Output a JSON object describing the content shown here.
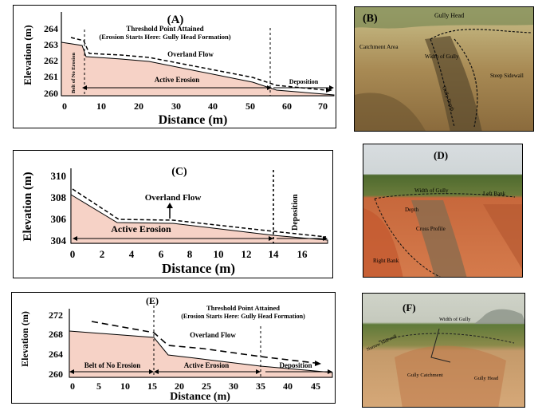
{
  "panels": {
    "A": {
      "label": "(A)",
      "ylabel": "Elevation (m)",
      "xlabel": "Distance (m)",
      "yticks": [
        "260",
        "261",
        "262",
        "263",
        "264"
      ],
      "xticks": [
        "0",
        "10",
        "20",
        "30",
        "40",
        "50",
        "60",
        "70"
      ],
      "annotation": "Threshold Point Attained",
      "annotation2": "(Erosion Starts Here: Gully Head Formation)",
      "flow": "Overland Flow",
      "zone1": "Belt of No Erosion",
      "zone2": "Active Erosion",
      "zone3": "Deposition"
    },
    "B": {
      "label": "(B)",
      "gully_head": "Gully Head",
      "catchment": "Catchment Area",
      "width": "Width of Gully",
      "sidewall": "Steep Sidewall",
      "depth": "Gully Depth"
    },
    "C": {
      "label": "(C)",
      "ylabel": "Elevation (m)",
      "xlabel": "Distance (m)",
      "yticks": [
        "304",
        "306",
        "308",
        "310"
      ],
      "xticks": [
        "0",
        "2",
        "4",
        "6",
        "8",
        "10",
        "12",
        "14",
        "16"
      ],
      "flow": "Overland Flow",
      "zone1": "Active Erosion",
      "zone2": "Deposition"
    },
    "D": {
      "label": "(D)",
      "width": "Width of Gully",
      "left_bank": "Left Bank",
      "depth": "Depth",
      "cross": "Cross Profile",
      "right_bank": "Right Bank"
    },
    "E": {
      "label": "(E)",
      "ylabel": "Elevation (m)",
      "xlabel": "Distance (m)",
      "yticks": [
        "260",
        "264",
        "268",
        "272"
      ],
      "xticks": [
        "0",
        "5",
        "10",
        "15",
        "20",
        "25",
        "30",
        "35",
        "40",
        "45"
      ],
      "annotation": "Threshold Point Attained",
      "annotation2": "(Erosion Starts Here: Gully Head Formation)",
      "flow": "Overland Flow",
      "zone1": "Belt of No Erosion",
      "zone2": "Active Erosion",
      "zone3": "Deposition"
    },
    "F": {
      "label": "(F)",
      "width": "Width of Gully",
      "catchment": "Gully Catchment",
      "head": "Gully Head",
      "side": "Narrow Sidewall"
    }
  },
  "colors": {
    "fill": "#f6d2c6",
    "line": "#000000"
  }
}
